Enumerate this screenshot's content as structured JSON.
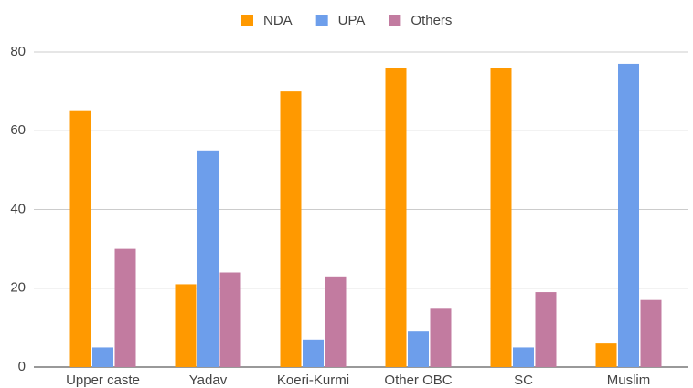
{
  "chart_data": {
    "type": "bar",
    "categories": [
      "Upper caste",
      "Yadav",
      "Koeri-Kurmi",
      "Other OBC",
      "SC",
      "Muslim"
    ],
    "series": [
      {
        "name": "NDA",
        "color": "#ff9900",
        "values": [
          65,
          21,
          70,
          76,
          76,
          6
        ]
      },
      {
        "name": "UPA",
        "color": "#6d9eeb",
        "values": [
          5,
          55,
          7,
          9,
          5,
          77
        ]
      },
      {
        "name": "Others",
        "color": "#c27ba0",
        "values": [
          30,
          24,
          23,
          15,
          19,
          17
        ]
      }
    ],
    "ylim": [
      0,
      80
    ],
    "yticks": [
      0,
      20,
      40,
      60,
      80
    ],
    "grid": true,
    "legend": "top"
  }
}
